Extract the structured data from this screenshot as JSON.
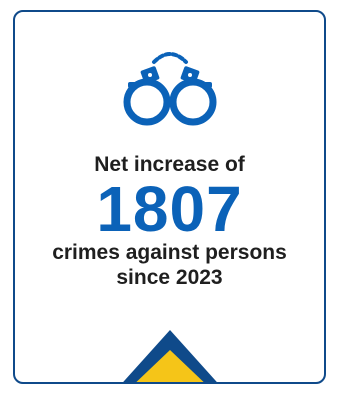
{
  "card": {
    "icon": "handcuffs-icon",
    "headline": "Net increase of",
    "number": "1807",
    "subline_1": "crimes against persons",
    "subline_2": "since 2023",
    "trend_icon": "up-arrow-triangle-icon"
  },
  "colors": {
    "border": "#0f4a8a",
    "icon": "#0b62b8",
    "number": "#0b62b8",
    "text": "#1f1f1f",
    "triangle_outline": "#0f4a8a",
    "triangle_fill": "#f5c518"
  }
}
